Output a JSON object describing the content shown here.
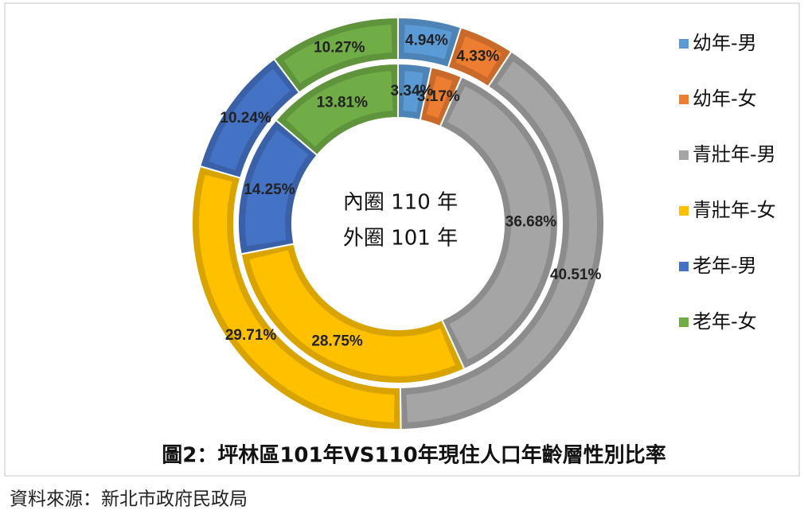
{
  "chart_data": {
    "type": "donut",
    "categories": [
      "幼年-男",
      "幼年-女",
      "青壯年-男",
      "青壯年-女",
      "老年-男",
      "老年-女"
    ],
    "colors": [
      "#5b9bd5",
      "#ed7d31",
      "#a5a5a5",
      "#ffc000",
      "#4472c4",
      "#70ad47"
    ],
    "series": [
      {
        "values": [
          4.94,
          4.33,
          40.51,
          29.71,
          10.24,
          10.27
        ],
        "value_labels": [
          "4.94%",
          "4.33%",
          "40.51%",
          "29.71%",
          "10.24%",
          "10.27%"
        ]
      },
      {
        "values": [
          3.34,
          3.17,
          36.68,
          28.75,
          14.25,
          13.81
        ],
        "value_labels": [
          "3.34%",
          "3.17%",
          "36.68%",
          "28.75%",
          "14.25%",
          "13.81%"
        ]
      }
    ],
    "center_text": [
      "內圈 110 年",
      "外圈 101 年"
    ],
    "title": "圖2：坪林區101年VS110年現住人口年齡層性別比率",
    "source": "資料來源：新北市政府民政局",
    "legend": "right"
  }
}
